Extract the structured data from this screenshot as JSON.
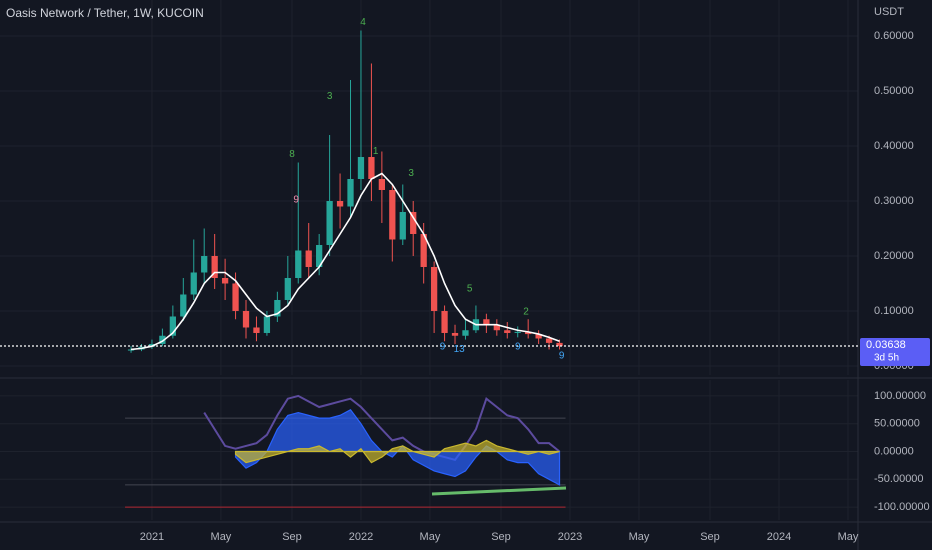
{
  "chart_data": [
    {
      "type": "candlestick",
      "title": "Oasis Network / Tether, 1W, KUCOIN",
      "y_unit": "USDT",
      "x": [
        2020.9,
        2020.95,
        2021.0,
        2021.05,
        2021.1,
        2021.15,
        2021.2,
        2021.25,
        2021.3,
        2021.35,
        2021.4,
        2021.45,
        2021.5,
        2021.55,
        2021.6,
        2021.65,
        2021.7,
        2021.75,
        2021.8,
        2021.85,
        2021.9,
        2021.95,
        2022.0,
        2022.05,
        2022.1,
        2022.15,
        2022.2,
        2022.25,
        2022.3,
        2022.35,
        2022.4,
        2022.45,
        2022.5,
        2022.55,
        2022.6,
        2022.65,
        2022.7,
        2022.75,
        2022.8,
        2022.85,
        2022.9,
        2022.95
      ],
      "open": [
        0.028,
        0.03,
        0.035,
        0.04,
        0.055,
        0.09,
        0.13,
        0.17,
        0.2,
        0.16,
        0.15,
        0.1,
        0.07,
        0.06,
        0.09,
        0.12,
        0.16,
        0.21,
        0.18,
        0.22,
        0.3,
        0.29,
        0.34,
        0.38,
        0.34,
        0.32,
        0.23,
        0.28,
        0.24,
        0.18,
        0.1,
        0.06,
        0.055,
        0.065,
        0.085,
        0.075,
        0.065,
        0.06,
        0.062,
        0.058,
        0.05,
        0.042
      ],
      "high": [
        0.036,
        0.04,
        0.048,
        0.068,
        0.11,
        0.16,
        0.23,
        0.25,
        0.24,
        0.195,
        0.17,
        0.12,
        0.09,
        0.1,
        0.135,
        0.2,
        0.37,
        0.26,
        0.24,
        0.42,
        0.35,
        0.52,
        0.61,
        0.55,
        0.39,
        0.33,
        0.33,
        0.3,
        0.26,
        0.19,
        0.11,
        0.075,
        0.085,
        0.11,
        0.095,
        0.085,
        0.08,
        0.072,
        0.085,
        0.065,
        0.055,
        0.048
      ],
      "low": [
        0.024,
        0.027,
        0.031,
        0.036,
        0.05,
        0.082,
        0.12,
        0.15,
        0.14,
        0.12,
        0.085,
        0.05,
        0.045,
        0.055,
        0.08,
        0.11,
        0.15,
        0.16,
        0.165,
        0.2,
        0.25,
        0.27,
        0.32,
        0.3,
        0.26,
        0.19,
        0.22,
        0.2,
        0.15,
        0.06,
        0.045,
        0.04,
        0.048,
        0.06,
        0.06,
        0.055,
        0.05,
        0.052,
        0.05,
        0.04,
        0.03,
        0.03
      ],
      "close": [
        0.03,
        0.035,
        0.04,
        0.055,
        0.09,
        0.13,
        0.17,
        0.2,
        0.16,
        0.15,
        0.1,
        0.07,
        0.06,
        0.09,
        0.12,
        0.16,
        0.21,
        0.18,
        0.22,
        0.3,
        0.29,
        0.34,
        0.38,
        0.34,
        0.32,
        0.23,
        0.28,
        0.24,
        0.18,
        0.1,
        0.06,
        0.055,
        0.065,
        0.085,
        0.075,
        0.065,
        0.06,
        0.062,
        0.058,
        0.05,
        0.042,
        0.03638
      ],
      "up_color": "#26a69a",
      "down_color": "#ef5350",
      "overlay": {
        "color": "#ffffff",
        "values": [
          0.03,
          0.032,
          0.036,
          0.045,
          0.06,
          0.085,
          0.115,
          0.15,
          0.17,
          0.17,
          0.155,
          0.13,
          0.105,
          0.09,
          0.095,
          0.11,
          0.14,
          0.16,
          0.18,
          0.21,
          0.24,
          0.27,
          0.31,
          0.34,
          0.35,
          0.33,
          0.3,
          0.27,
          0.24,
          0.2,
          0.15,
          0.11,
          0.085,
          0.075,
          0.075,
          0.075,
          0.07,
          0.065,
          0.062,
          0.058,
          0.052,
          0.045
        ]
      },
      "annotations": [
        {
          "text": "4",
          "x": 2022.01,
          "y": 0.625,
          "color": "#4caf50"
        },
        {
          "text": "3",
          "x": 2021.85,
          "y": 0.49,
          "color": "#4caf50"
        },
        {
          "text": "8",
          "x": 2021.67,
          "y": 0.385,
          "color": "#4caf50"
        },
        {
          "text": "9",
          "x": 2021.69,
          "y": 0.302,
          "color": "#f48fb1"
        },
        {
          "text": "1",
          "x": 2022.07,
          "y": 0.39,
          "color": "#4caf50"
        },
        {
          "text": "3",
          "x": 2022.24,
          "y": 0.35,
          "color": "#4caf50"
        },
        {
          "text": "5",
          "x": 2022.52,
          "y": 0.14,
          "color": "#4caf50"
        },
        {
          "text": "2",
          "x": 2022.79,
          "y": 0.098,
          "color": "#4caf50"
        },
        {
          "text": "9",
          "x": 2022.39,
          "y": 0.035,
          "color": "#42a5f5"
        },
        {
          "text": "13",
          "x": 2022.47,
          "y": 0.03,
          "color": "#42a5f5"
        },
        {
          "text": "9",
          "x": 2022.75,
          "y": 0.035,
          "color": "#42a5f5"
        },
        {
          "text": "9",
          "x": 2022.96,
          "y": 0.018,
          "color": "#42a5f5"
        }
      ],
      "last_price": 0.03638,
      "countdown": "3d 5h",
      "ylim": [
        -0.0164,
        0.6655
      ],
      "yticks": [
        {
          "value": 0.6,
          "label": "0.60000"
        },
        {
          "value": 0.5,
          "label": "0.50000"
        },
        {
          "value": 0.4,
          "label": "0.40000"
        },
        {
          "value": 0.3,
          "label": "0.30000"
        },
        {
          "value": 0.2,
          "label": "0.20000"
        },
        {
          "value": 0.1,
          "label": "0.10000"
        },
        {
          "value": 0,
          "label": "0.00000"
        }
      ],
      "xlim": [
        2020.273,
        2024.378
      ],
      "xticks": [
        2021,
        {
          "value": 2021.33,
          "label": "May"
        },
        {
          "value": 2021.67,
          "label": "Sep"
        },
        2022,
        {
          "value": 2022.33,
          "label": "May"
        },
        {
          "value": 2022.67,
          "label": "Sep"
        },
        2023,
        {
          "value": 2023.33,
          "label": "May"
        },
        {
          "value": 2023.67,
          "label": "Sep"
        },
        2024,
        {
          "value": 2024.33,
          "label": "May"
        }
      ],
      "grid": true
    },
    {
      "type": "oscillator",
      "lines": [
        {
          "color": "#5c4b9e",
          "fill": false,
          "values": [
            null,
            null,
            null,
            null,
            null,
            null,
            null,
            70,
            40,
            10,
            5,
            10,
            15,
            30,
            65,
            95,
            100,
            90,
            80,
            85,
            90,
            95,
            80,
            60,
            40,
            20,
            25,
            10,
            0,
            -5,
            -10,
            -15,
            10,
            40,
            95,
            80,
            65,
            60,
            40,
            15,
            15,
            0
          ]
        },
        {
          "color": "#2962ff",
          "fill": true,
          "values": [
            null,
            null,
            null,
            null,
            null,
            null,
            null,
            null,
            null,
            null,
            -10,
            -30,
            -20,
            0,
            40,
            65,
            70,
            65,
            60,
            60,
            65,
            75,
            50,
            20,
            0,
            -10,
            10,
            -15,
            -25,
            -35,
            -40,
            -45,
            -35,
            -10,
            10,
            0,
            -15,
            -20,
            -20,
            -40,
            -50,
            -60
          ]
        },
        {
          "color": "#c9b82e",
          "fill": true,
          "values": [
            null,
            null,
            null,
            null,
            null,
            null,
            null,
            null,
            null,
            null,
            -5,
            -20,
            -15,
            -10,
            -5,
            0,
            5,
            5,
            10,
            0,
            5,
            -10,
            5,
            -20,
            -10,
            5,
            10,
            0,
            -5,
            -10,
            5,
            10,
            15,
            10,
            20,
            10,
            5,
            0,
            -5,
            0,
            -5,
            0
          ]
        }
      ],
      "levels": [
        {
          "value": 60,
          "color": "#434651"
        },
        {
          "value": -60,
          "color": "#434651"
        },
        {
          "value": -100,
          "color": "#b22833"
        }
      ],
      "ylim": [
        -123.2,
        128.6
      ],
      "yticks": [
        {
          "value": 100,
          "label": "100.00000"
        },
        {
          "value": 50,
          "label": "50.00000"
        },
        {
          "value": 0,
          "label": "0.00000"
        },
        {
          "value": -50,
          "label": "-50.00000"
        },
        {
          "value": -100,
          "label": "-100.00000"
        }
      ]
    }
  ]
}
